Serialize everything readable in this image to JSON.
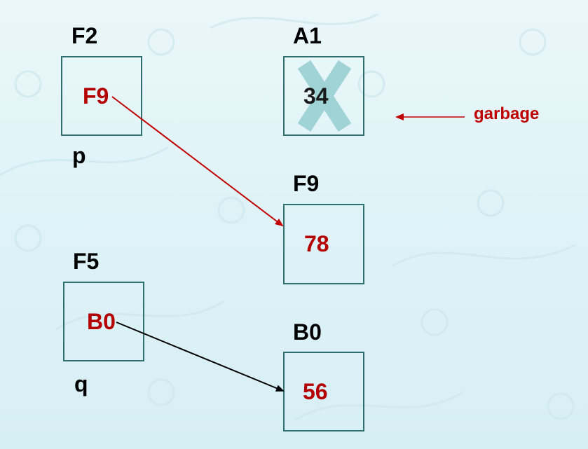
{
  "cells": {
    "f2": {
      "address": "F2",
      "value": "F9",
      "variable": "p"
    },
    "a1": {
      "address": "A1",
      "value": "34"
    },
    "f9": {
      "address": "F9",
      "value": "78"
    },
    "f5": {
      "address": "F5",
      "value": "B0",
      "variable": "q"
    },
    "b0": {
      "address": "B0",
      "value": "56"
    }
  },
  "annotation": {
    "garbage_label": "garbage"
  },
  "colors": {
    "pointer_value": "#b40000",
    "pointer_arrow_p": "#c00000",
    "pointer_arrow_q": "#000000",
    "garbage_cross": "#9fd3d6",
    "box_border": "#2f6f6f"
  },
  "icons": {
    "garbage_marker": "x-cross-icon"
  }
}
